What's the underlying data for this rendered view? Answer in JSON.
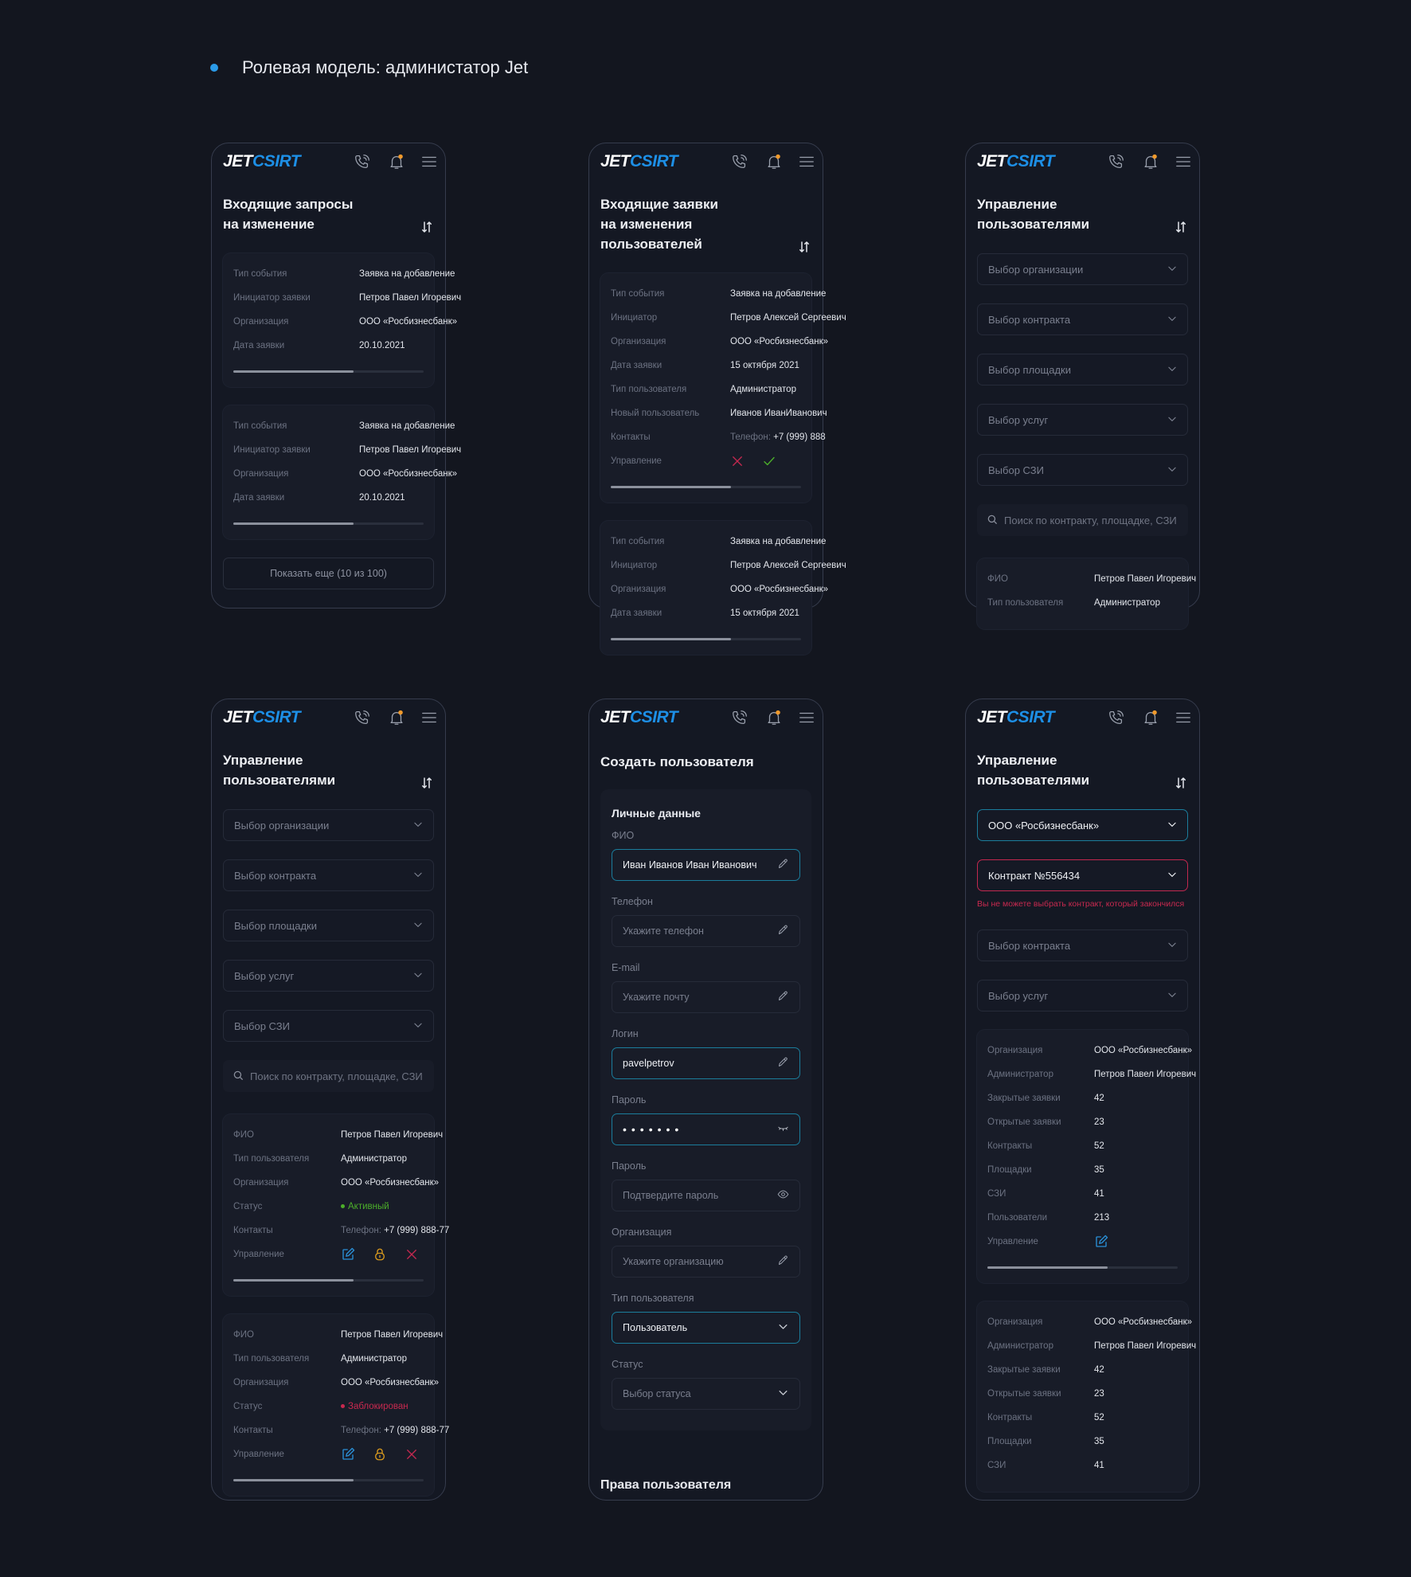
{
  "heading": "Ролевая модель: администатор Jet",
  "logo": {
    "part1": "JET",
    "part2": "CSIRT"
  },
  "colors": {
    "background": "#13161f",
    "accent": "#1d8fe6",
    "notification": "#f29a2b",
    "active_border": "#1b7d9c",
    "error": "#c2284f",
    "success": "#4caf2a"
  },
  "header_icons": [
    "phone-icon",
    "bell-icon",
    "menu-icon"
  ],
  "phones": [
    {
      "title": [
        "Входящие запросы",
        "на изменение"
      ],
      "sort": true,
      "blocks": [
        {
          "type": "card",
          "progress": 0.63,
          "rows": [
            {
              "label": "Тип события",
              "value": "Заявка на добавление"
            },
            {
              "label": "Инициатор заявки",
              "value": "Петров Павел Игоревич"
            },
            {
              "label": "Организация",
              "value": "ООО «Росбизнесбанк»"
            },
            {
              "label": "Дата заявки",
              "value": "20.10.2021"
            }
          ]
        },
        {
          "type": "card",
          "progress": 0.63,
          "rows": [
            {
              "label": "Тип события",
              "value": "Заявка на добавление"
            },
            {
              "label": "Инициатор заявки",
              "value": "Петров Павел Игоревич"
            },
            {
              "label": "Организация",
              "value": "ООО «Росбизнесбанк»"
            },
            {
              "label": "Дата заявки",
              "value": "20.10.2021"
            }
          ]
        },
        {
          "type": "button",
          "label": "Показать еще (10 из 100)"
        }
      ]
    },
    {
      "title": [
        "Входящие заявки",
        "на изменения пользователей"
      ],
      "sort": true,
      "blocks": [
        {
          "type": "card",
          "progress": 0.63,
          "rows": [
            {
              "label": "Тип события",
              "value": "Заявка на добавление"
            },
            {
              "label": "Инициатор",
              "value": "Петров Алексей Сергеевич"
            },
            {
              "label": "Организация",
              "value": "ООО «Росбизнесбанк»"
            },
            {
              "label": "Дата заявки",
              "value": "15 октября 2021"
            },
            {
              "label": "Тип пользователя",
              "value": "Администратор"
            },
            {
              "label": "Новый пользователь",
              "value": "Иванов ИванИванович"
            },
            {
              "label": "Контакты",
              "kind": "contact",
              "prefix": "Телефон:",
              "value": "+7 (999) 888"
            },
            {
              "label": "Управление",
              "kind": "actions",
              "icons": [
                "reject-icon",
                "approve-icon"
              ]
            }
          ]
        },
        {
          "type": "card",
          "progress": 0.63,
          "rows": [
            {
              "label": "Тип события",
              "value": "Заявка на добавление"
            },
            {
              "label": "Инициатор",
              "value": "Петров Алексей Сергеевич"
            },
            {
              "label": "Организация",
              "value": "ООО «Росбизнесбанк»"
            },
            {
              "label": "Дата заявки",
              "value": "15 октября 2021"
            }
          ]
        }
      ]
    },
    {
      "title": [
        "Управление",
        "пользователями"
      ],
      "sort": true,
      "blocks": [
        {
          "type": "select",
          "label": "Выбор организации"
        },
        {
          "type": "select",
          "label": "Выбор контракта"
        },
        {
          "type": "select",
          "label": "Выбор площадки"
        },
        {
          "type": "select",
          "label": "Выбор услуг"
        },
        {
          "type": "select",
          "label": "Выбор СЗИ"
        },
        {
          "type": "search",
          "placeholder": "Поиск по контракту, площадке, СЗИ"
        },
        {
          "type": "card",
          "rows": [
            {
              "label": "ФИО",
              "value": "Петров Павел Игоревич"
            },
            {
              "label": "Тип пользователя",
              "value": "Администратор"
            }
          ]
        }
      ]
    },
    {
      "title": [
        "Управление",
        "пользователями"
      ],
      "sort": true,
      "blocks": [
        {
          "type": "select",
          "label": "Выбор организации"
        },
        {
          "type": "select",
          "label": "Выбор контракта"
        },
        {
          "type": "select",
          "label": "Выбор площадки"
        },
        {
          "type": "select",
          "label": "Выбор услуг"
        },
        {
          "type": "select",
          "label": "Выбор СЗИ"
        },
        {
          "type": "search",
          "placeholder": "Поиск по контракту, площадке, СЗИ"
        },
        {
          "type": "card",
          "progress": 0.63,
          "rows": [
            {
              "label": "ФИО",
              "value": "Петров Павел Игоревич"
            },
            {
              "label": "Тип пользователя",
              "value": "Администратор"
            },
            {
              "label": "Организация",
              "value": "ООО «Росбизнесбанк»"
            },
            {
              "label": "Статус",
              "kind": "status",
              "value": "Активный",
              "color": "#4caf2a"
            },
            {
              "label": "Контакты",
              "kind": "contact",
              "prefix": "Телефон:",
              "value": "+7 (999) 888-77"
            },
            {
              "label": "Управление",
              "kind": "actions",
              "icons": [
                "edit-icon",
                "lock-icon",
                "delete-icon"
              ]
            }
          ]
        },
        {
          "type": "card",
          "progress": 0.63,
          "rows": [
            {
              "label": "ФИО",
              "value": "Петров Павел Игоревич"
            },
            {
              "label": "Тип пользователя",
              "value": "Администратор"
            },
            {
              "label": "Организация",
              "value": "ООО «Росбизнесбанк»"
            },
            {
              "label": "Статус",
              "kind": "status",
              "value": "Заблокирован",
              "color": "#c8294f"
            },
            {
              "label": "Контакты",
              "kind": "contact",
              "prefix": "Телефон:",
              "value": "+7 (999) 888-77"
            },
            {
              "label": "Управление",
              "kind": "actions",
              "icons": [
                "edit-icon",
                "lock-icon",
                "delete-icon"
              ]
            }
          ]
        }
      ]
    },
    {
      "title_single": "Создать пользователя",
      "blocks": [
        {
          "type": "form",
          "title": "Личные данные",
          "fields": [
            {
              "label": "ФИО",
              "value": "Иван Иванов Иван Иванович",
              "icon": "pencil-icon",
              "active": true
            },
            {
              "label": "Телефон",
              "placeholder": "Укажите телефон",
              "icon": "pencil-icon"
            },
            {
              "label": "E-mail",
              "placeholder": "Укажите почту",
              "icon": "pencil-icon"
            },
            {
              "label": "Логин",
              "value": "pavelpetrov",
              "icon": "pencil-icon",
              "active": true
            },
            {
              "label": "Пароль",
              "value": "•••••••",
              "password": true,
              "icon": "eye-closed-icon",
              "active": true
            },
            {
              "label": "Пароль",
              "placeholder": "Подтвердите пароль",
              "icon": "eye-icon"
            },
            {
              "label": "Организация",
              "placeholder": "Укажите организацию",
              "icon": "pencil-icon"
            },
            {
              "label": "Тип пользователя",
              "value": "Пользователь",
              "icon": "chevron-down-icon",
              "active": true
            },
            {
              "label": "Статус",
              "placeholder": "Выбор статуса",
              "icon": "chevron-down-icon"
            }
          ]
        },
        {
          "type": "section",
          "text": "Права пользователя"
        }
      ]
    },
    {
      "title": [
        "Управление",
        "пользователями"
      ],
      "sort": true,
      "blocks": [
        {
          "type": "select",
          "label": "ООО «Росбизнесбанк»",
          "state": "filled"
        },
        {
          "type": "select",
          "label": "Контракт №556434",
          "state": "error"
        },
        {
          "type": "error",
          "text": "Вы не можете выбрать контракт, который закончился"
        },
        {
          "type": "select",
          "label": "Выбор контракта"
        },
        {
          "type": "select",
          "label": "Выбор услуг"
        },
        {
          "type": "card",
          "progress": 0.63,
          "rows": [
            {
              "label": "Организация",
              "value": "ООО «Росбизнесбанк»"
            },
            {
              "label": "Администратор",
              "value": "Петров Павел Игоревич"
            },
            {
              "label": "Закрытые заявки",
              "value": "42"
            },
            {
              "label": "Открытые заявки",
              "value": "23"
            },
            {
              "label": "Контракты",
              "value": "52"
            },
            {
              "label": "Площадки",
              "value": "35"
            },
            {
              "label": "СЗИ",
              "value": "41"
            },
            {
              "label": "Пользователи",
              "value": "213"
            },
            {
              "label": "Управление",
              "kind": "actions",
              "icons": [
                "edit-icon"
              ]
            }
          ]
        },
        {
          "type": "card",
          "rows": [
            {
              "label": "Организация",
              "value": "ООО «Росбизнесбанк»"
            },
            {
              "label": "Администратор",
              "value": "Петров Павел Игоревич"
            },
            {
              "label": "Закрытые заявки",
              "value": "42"
            },
            {
              "label": "Открытые заявки",
              "value": "23"
            },
            {
              "label": "Контракты",
              "value": "52"
            },
            {
              "label": "Площадки",
              "value": "35"
            },
            {
              "label": "СЗИ",
              "value": "41"
            }
          ]
        }
      ]
    }
  ]
}
